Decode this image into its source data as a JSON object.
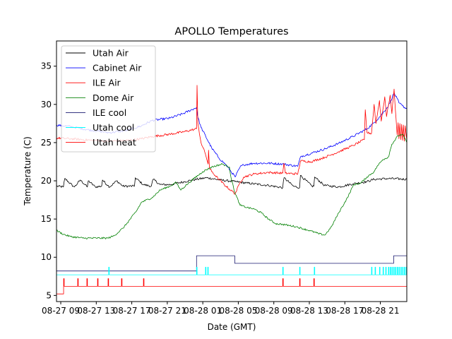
{
  "chart_data": {
    "type": "line",
    "title": "APOLLO Temperatures",
    "xlabel": "Date (GMT)",
    "ylabel": "Temperature (C)",
    "x_units": "hours since 08-27 09:00 GMT",
    "xlim": [
      -0.48,
      38.98
    ],
    "ylim": [
      4.2,
      38.3
    ],
    "grid": false,
    "legend_position": "top-left",
    "x_ticks": [
      {
        "value": 0,
        "label": "08-27 09"
      },
      {
        "value": 4,
        "label": "08-27 13"
      },
      {
        "value": 8,
        "label": "08-27 17"
      },
      {
        "value": 12,
        "label": "08-27 21"
      },
      {
        "value": 16,
        "label": "08-28 01"
      },
      {
        "value": 20,
        "label": "08-28 05"
      },
      {
        "value": 24,
        "label": "08-28 09"
      },
      {
        "value": 28,
        "label": "08-28 13"
      },
      {
        "value": 32,
        "label": "08-28 17"
      },
      {
        "value": 36,
        "label": "08-28 21"
      }
    ],
    "y_ticks": [
      {
        "value": 5,
        "label": "5"
      },
      {
        "value": 10,
        "label": "10"
      },
      {
        "value": 15,
        "label": "15"
      },
      {
        "value": 20,
        "label": "20"
      },
      {
        "value": 25,
        "label": "25"
      },
      {
        "value": 30,
        "label": "30"
      },
      {
        "value": 35,
        "label": "35"
      }
    ],
    "series": [
      {
        "name": "Utah Air",
        "color": "#000000",
        "noise": 0.15,
        "points": [
          [
            -0.48,
            19.3
          ],
          [
            0.3,
            19.2
          ],
          [
            0.45,
            20.3
          ],
          [
            1.4,
            19.3
          ],
          [
            1.55,
            19.2
          ],
          [
            2.2,
            20.1
          ],
          [
            3.0,
            19.2
          ],
          [
            3.1,
            20.0
          ],
          [
            3.9,
            19.2
          ],
          [
            4.6,
            19.3
          ],
          [
            4.7,
            20.1
          ],
          [
            5.3,
            19.4
          ],
          [
            5.5,
            19.2
          ],
          [
            6.3,
            20.0
          ],
          [
            7.0,
            19.3
          ],
          [
            8.3,
            19.3
          ],
          [
            8.4,
            20.4
          ],
          [
            9.3,
            19.5
          ],
          [
            10.2,
            19.3
          ],
          [
            10.4,
            20.2
          ],
          [
            11.2,
            19.5
          ],
          [
            12.3,
            19.5
          ],
          [
            14.0,
            19.9
          ],
          [
            15.3,
            20.2
          ],
          [
            16.5,
            20.4
          ],
          [
            18.0,
            20.1
          ],
          [
            19.6,
            19.9
          ],
          [
            21.0,
            19.7
          ],
          [
            23.4,
            19.4
          ],
          [
            25.0,
            19.1
          ],
          [
            25.15,
            20.4
          ],
          [
            26.2,
            19.3
          ],
          [
            26.9,
            19.1
          ],
          [
            27.0,
            20.7
          ],
          [
            28.3,
            19.3
          ],
          [
            28.5,
            19.3
          ],
          [
            28.6,
            20.5
          ],
          [
            29.7,
            19.4
          ],
          [
            31.3,
            19.2
          ],
          [
            32.9,
            19.6
          ],
          [
            34.5,
            19.9
          ],
          [
            35.3,
            20.2
          ],
          [
            36.9,
            20.3
          ],
          [
            38.98,
            20.2
          ]
        ]
      },
      {
        "name": "Cabinet Air",
        "color": "#0000ff",
        "noise": 0.15,
        "points": [
          [
            -0.48,
            27.3
          ],
          [
            1.1,
            27.1
          ],
          [
            3.5,
            26.6
          ],
          [
            5.5,
            26.3
          ],
          [
            7.5,
            26.6
          ],
          [
            9.1,
            27.2
          ],
          [
            10.3,
            27.9
          ],
          [
            12.3,
            28.2
          ],
          [
            13.8,
            28.8
          ],
          [
            15.3,
            29.6
          ],
          [
            15.4,
            28.5
          ],
          [
            15.8,
            27.0
          ],
          [
            17.0,
            24.3
          ],
          [
            17.8,
            23.0
          ],
          [
            18.6,
            22.1
          ],
          [
            19.65,
            20.5
          ],
          [
            20.2,
            21.8
          ],
          [
            20.6,
            22.1
          ],
          [
            21.8,
            22.3
          ],
          [
            23.4,
            22.3
          ],
          [
            25.0,
            22.2
          ],
          [
            26.7,
            21.9
          ],
          [
            27.05,
            23.2
          ],
          [
            28.2,
            23.6
          ],
          [
            29.8,
            24.2
          ],
          [
            31.3,
            24.9
          ],
          [
            32.9,
            25.8
          ],
          [
            34.5,
            26.8
          ],
          [
            35.3,
            27.6
          ],
          [
            36.1,
            28.6
          ],
          [
            36.9,
            29.8
          ],
          [
            37.55,
            31.5
          ],
          [
            38.1,
            30.2
          ],
          [
            38.5,
            29.8
          ],
          [
            38.98,
            29.4
          ]
        ]
      },
      {
        "name": "ILE Air",
        "color": "#ff0000",
        "noise": 0.15,
        "points": [
          [
            -0.48,
            25.6
          ],
          [
            1.1,
            25.5
          ],
          [
            3.5,
            25.3
          ],
          [
            5.5,
            25.2
          ],
          [
            7.5,
            25.3
          ],
          [
            9.1,
            25.5
          ],
          [
            10.3,
            25.8
          ],
          [
            12.3,
            26.1
          ],
          [
            13.8,
            26.4
          ],
          [
            15.3,
            26.8
          ],
          [
            15.35,
            32.5
          ],
          [
            15.45,
            27.5
          ],
          [
            15.8,
            25.0
          ],
          [
            16.3,
            23.5
          ],
          [
            16.6,
            22.2
          ],
          [
            16.65,
            24.0
          ],
          [
            16.75,
            21.7
          ],
          [
            17.0,
            21.2
          ],
          [
            17.8,
            20.2
          ],
          [
            18.6,
            19.3
          ],
          [
            19.65,
            18.3
          ],
          [
            20.2,
            19.8
          ],
          [
            20.6,
            20.5
          ],
          [
            21.8,
            20.9
          ],
          [
            23.4,
            21.1
          ],
          [
            25.0,
            21.0
          ],
          [
            25.14,
            22.3
          ],
          [
            25.3,
            21.0
          ],
          [
            26.7,
            20.9
          ],
          [
            27.0,
            22.6
          ],
          [
            28.2,
            22.5
          ],
          [
            29.8,
            23.1
          ],
          [
            31.3,
            23.8
          ],
          [
            32.9,
            24.6
          ],
          [
            34.2,
            25.4
          ],
          [
            34.3,
            29.3
          ],
          [
            34.5,
            26.3
          ],
          [
            35.0,
            26.2
          ],
          [
            35.3,
            30.0
          ],
          [
            35.5,
            27.5
          ],
          [
            35.9,
            30.5
          ],
          [
            36.1,
            27.8
          ],
          [
            36.5,
            31.0
          ],
          [
            36.7,
            28.4
          ],
          [
            37.1,
            31.2
          ],
          [
            37.3,
            28.8
          ],
          [
            37.55,
            32.0
          ],
          [
            37.7,
            29.2
          ],
          [
            37.9,
            26.0
          ],
          [
            38.0,
            27.6
          ],
          [
            38.1,
            25.5
          ],
          [
            38.2,
            27.5
          ],
          [
            38.3,
            25.4
          ],
          [
            38.4,
            27.4
          ],
          [
            38.5,
            25.3
          ],
          [
            38.6,
            27.3
          ],
          [
            38.7,
            25.2
          ],
          [
            38.8,
            27.2
          ],
          [
            38.98,
            25.3
          ]
        ]
      },
      {
        "name": "Dome Air",
        "color": "#008000",
        "noise": 0.12,
        "points": [
          [
            -0.48,
            13.5
          ],
          [
            0.3,
            13.0
          ],
          [
            1.1,
            12.7
          ],
          [
            2.5,
            12.5
          ],
          [
            4.0,
            12.5
          ],
          [
            5.3,
            12.5
          ],
          [
            6.0,
            12.8
          ],
          [
            7.0,
            13.8
          ],
          [
            7.5,
            14.5
          ],
          [
            8.5,
            16.0
          ],
          [
            9.1,
            17.2
          ],
          [
            10.3,
            17.8
          ],
          [
            11.2,
            18.8
          ],
          [
            12.3,
            19.3
          ],
          [
            13.0,
            19.8
          ],
          [
            13.5,
            18.8
          ],
          [
            14.2,
            19.5
          ],
          [
            15.0,
            20.3
          ],
          [
            16.0,
            21.2
          ],
          [
            17.0,
            21.8
          ],
          [
            18.2,
            22.2
          ],
          [
            19.0,
            21.8
          ],
          [
            19.2,
            20.3
          ],
          [
            19.6,
            18.5
          ],
          [
            20.2,
            16.8
          ],
          [
            21.0,
            16.5
          ],
          [
            21.8,
            16.3
          ],
          [
            22.6,
            15.8
          ],
          [
            23.4,
            15.0
          ],
          [
            24.2,
            14.4
          ],
          [
            25.0,
            14.3
          ],
          [
            26.5,
            14.0
          ],
          [
            28.0,
            13.5
          ],
          [
            29.0,
            13.1
          ],
          [
            29.75,
            12.9
          ],
          [
            30.5,
            14.0
          ],
          [
            31.3,
            15.8
          ],
          [
            32.3,
            17.8
          ],
          [
            33.0,
            19.5
          ],
          [
            33.8,
            19.7
          ],
          [
            34.5,
            20.5
          ],
          [
            35.3,
            21.2
          ],
          [
            35.7,
            22.0
          ],
          [
            36.3,
            22.8
          ],
          [
            36.9,
            23.1
          ],
          [
            37.3,
            24.8
          ],
          [
            38.0,
            25.9
          ],
          [
            38.5,
            26.1
          ],
          [
            38.98,
            25.0
          ]
        ]
      },
      {
        "name": "ILE cool",
        "color": "#191970",
        "noise": 0,
        "points": [
          [
            -0.48,
            8.2
          ],
          [
            15.3,
            8.2
          ],
          [
            15.3,
            10.2
          ],
          [
            19.6,
            10.2
          ],
          [
            19.6,
            9.2
          ],
          [
            37.5,
            9.2
          ],
          [
            37.5,
            10.2
          ],
          [
            38.98,
            10.2
          ]
        ]
      },
      {
        "name": "Utah cool",
        "color": "#00ffff",
        "noise": 0,
        "base": 7.7,
        "spike_to": 8.7,
        "spikes": [
          5.4,
          15.3,
          16.3,
          16.55,
          25.0,
          26.9,
          28.55,
          35.0,
          35.4,
          35.9,
          36.3,
          36.6,
          36.9,
          37.1,
          37.3,
          37.5,
          37.7,
          37.9,
          38.1,
          38.3,
          38.5,
          38.7,
          38.9
        ]
      },
      {
        "name": "Utah heat",
        "color": "#ff0000",
        "noise": 0,
        "base_before": 5.2,
        "step_at": 0.32,
        "base": 6.2,
        "spike_to": 7.2,
        "spikes": [
          0.32,
          1.91,
          2.94,
          4.14,
          5.33,
          6.84,
          9.31,
          25.0,
          26.9,
          28.5
        ]
      }
    ]
  }
}
